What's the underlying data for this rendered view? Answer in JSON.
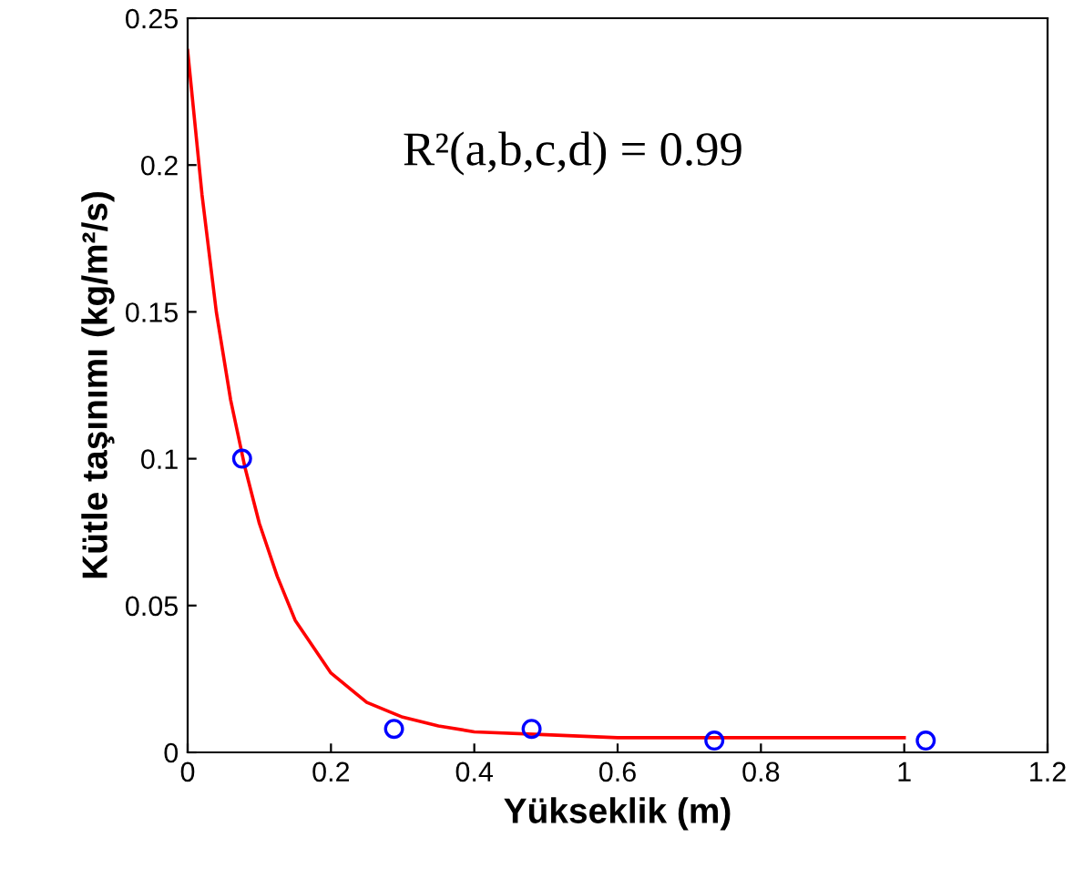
{
  "chart_data": {
    "type": "scatter",
    "xlabel": "Yükseklik (m)",
    "ylabel": "Kütle taşınımı (kg/m²/s)",
    "xlim": [
      0,
      1.2
    ],
    "xticks": [
      0,
      0.2,
      0.4,
      0.6,
      0.8,
      1,
      1.2
    ],
    "ylim": [
      0,
      0.25
    ],
    "yticks": [
      0,
      0.05,
      0.1,
      0.15,
      0.2,
      0.25
    ],
    "grid": false,
    "annotations": [
      "R²(a,b,c,d) = 0.99"
    ],
    "series": [
      {
        "type": "line",
        "color": "#ff0000",
        "marker": "none",
        "line_style": "solid",
        "x": [
          0,
          0.02,
          0.04,
          0.06,
          0.08,
          0.1,
          0.125,
          0.15,
          0.2,
          0.25,
          0.3,
          0.35,
          0.4,
          0.5,
          0.6,
          0.8,
          1.0
        ],
        "values": [
          0.239,
          0.19,
          0.15,
          0.12,
          0.097,
          0.078,
          0.06,
          0.045,
          0.027,
          0.017,
          0.012,
          0.009,
          0.007,
          0.006,
          0.005,
          0.005,
          0.005
        ]
      },
      {
        "color": "#0000ff",
        "marker": "circle",
        "x": [
          0.076,
          0.288,
          0.48,
          0.735,
          1.03
        ],
        "values": [
          0.1,
          0.008,
          0.008,
          0.004,
          0.004
        ]
      }
    ]
  }
}
